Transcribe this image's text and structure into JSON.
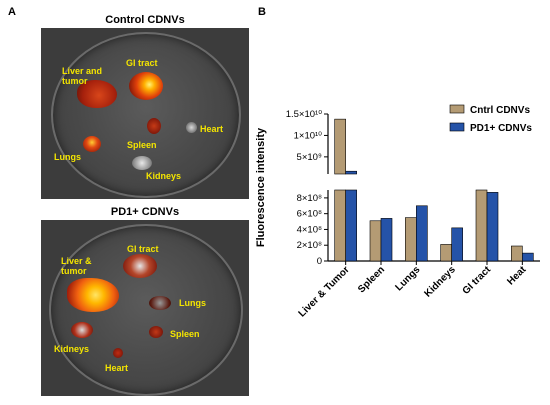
{
  "panel_a": {
    "letter": "A",
    "top_title": "Control CDNVs",
    "bottom_title": "PD1+ CDNVs",
    "top_labels": {
      "liver": "Liver and\ntumor",
      "gi": "GI tract",
      "heart": "Heart",
      "lungs": "Lungs",
      "spleen": "Spleen",
      "kidneys": "Kidneys"
    },
    "bottom_labels": {
      "liver": "Liver &\ntumor",
      "gi": "GI tract",
      "lungs": "Lungs",
      "spleen": "Spleen",
      "kidneys": "Kidneys",
      "heart": "Heart"
    }
  },
  "panel_b": {
    "letter": "B"
  },
  "chart_data": {
    "type": "bar",
    "ylabel": "Fluorescence intensity",
    "xlabel": "",
    "categories": [
      "Liver & Tumor",
      "Spleen",
      "Lungs",
      "Kidneys",
      "GI tract",
      "Heat"
    ],
    "series": [
      {
        "name": "Cntrl CDNVs",
        "color": "#b49b74",
        "values": [
          13800000000,
          510000000,
          550000000,
          210000000,
          910000000,
          190000000
        ]
      },
      {
        "name": "PD1+ CDNVs",
        "color": "#2553a8",
        "values": [
          1650000000,
          540000000,
          700000000,
          420000000,
          870000000,
          100000000
        ]
      }
    ],
    "broken_axis": true,
    "lower_segment": {
      "ylim": [
        0,
        900000000
      ],
      "ticks": [
        0,
        200000000,
        400000000,
        600000000,
        800000000
      ],
      "tick_labels": [
        "0",
        "2×10⁸",
        "4×10⁸",
        "6×10⁸",
        "8×10⁸"
      ]
    },
    "upper_segment": {
      "ylim": [
        1000000000,
        15000000000
      ],
      "ticks": [
        5000000000,
        10000000000,
        15000000000
      ],
      "tick_labels": [
        "5×10⁹",
        "1×10¹⁰",
        "1.5×10¹⁰"
      ]
    },
    "legend_position": "top-right"
  }
}
